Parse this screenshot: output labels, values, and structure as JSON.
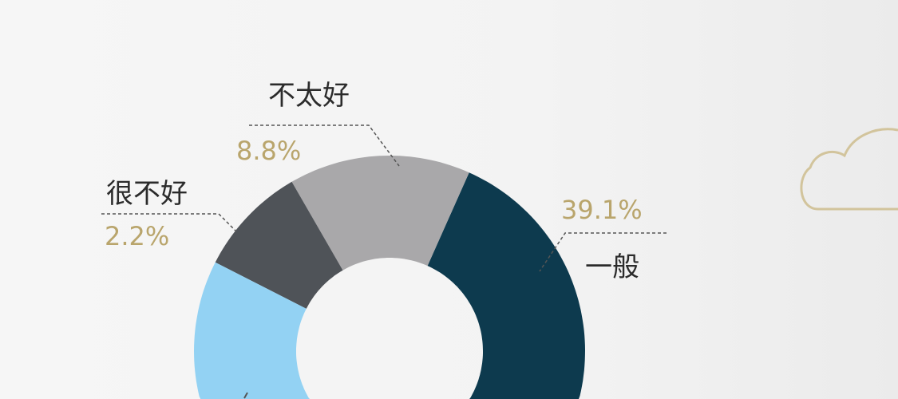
{
  "chart_data": {
    "type": "pie",
    "donut": true,
    "slices": [
      {
        "label": "一般",
        "value": 39.1,
        "color": "#0d3a4e"
      },
      {
        "label": "不太好",
        "value": 8.8,
        "color": "#a9a8aa"
      },
      {
        "label": "很不好",
        "value": 2.2,
        "color": "#4f5358"
      },
      {
        "label": "",
        "value": null,
        "color": "#93d2f3"
      },
      {
        "label": "",
        "value": null,
        "color": "#c9b98a"
      }
    ],
    "value_format": "{v}%",
    "label_color": "#2b2b2b",
    "value_color": "#b9a56c"
  },
  "decor": {
    "cloud_icon_color": "#d2c49c"
  }
}
